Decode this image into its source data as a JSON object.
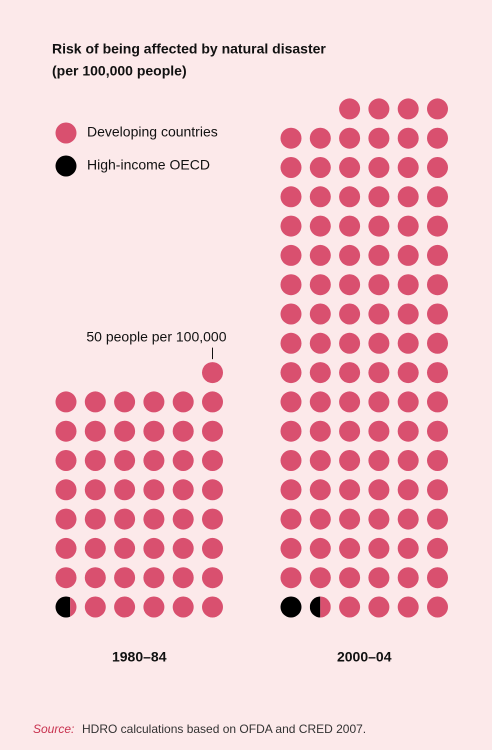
{
  "chart_data": {
    "type": "pictogram",
    "title": "Risk of being affected by natural disaster",
    "subtitle": "(per 100,000 people)",
    "categories": [
      "1980–84",
      "2000–04"
    ],
    "unit": 50,
    "annotation": "50 people per 100,000",
    "series": [
      {
        "name": "Developing countries",
        "color": "#d9506f",
        "values": [
          2415,
          5225
        ]
      },
      {
        "name": "High-income OECD",
        "color": "#000000",
        "values": [
          35,
          75
        ]
      }
    ],
    "source_label": "Source:",
    "source": "HDRO calculations based on OFDA and CRED 2007."
  }
}
